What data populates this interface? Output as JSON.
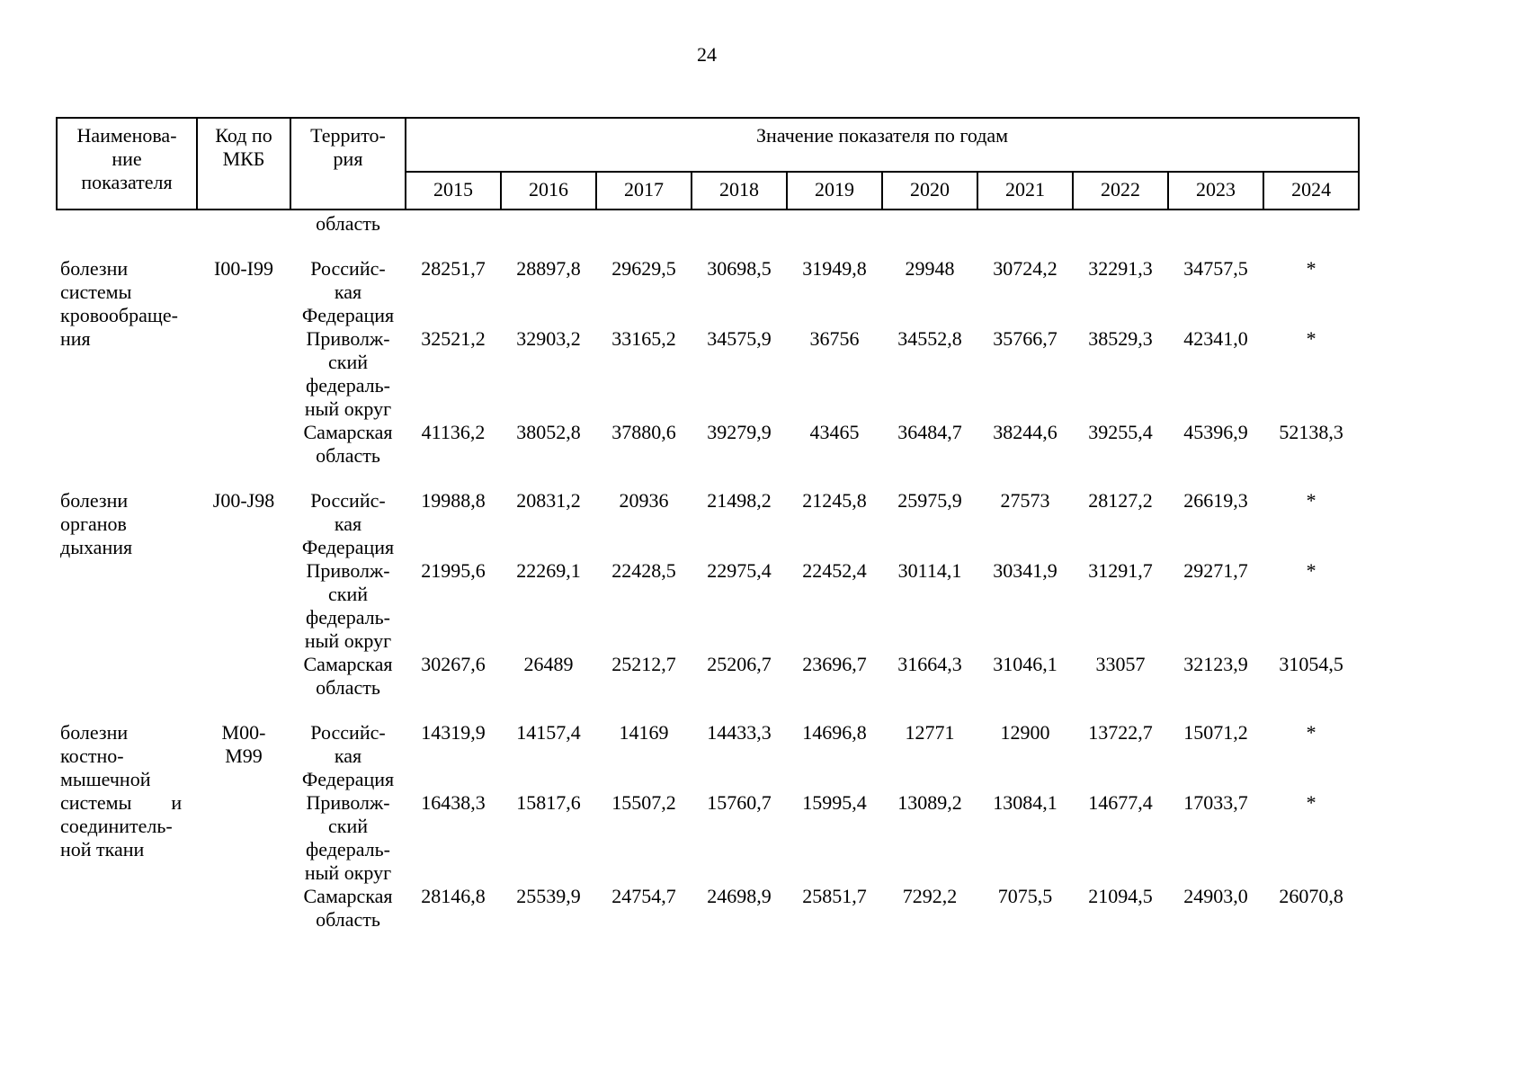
{
  "page": {
    "number": "24"
  },
  "table": {
    "header": {
      "col_name": "Наименова-\nние\nпоказателя",
      "col_code": "Код по\nМКБ",
      "col_territory": "Террито-\nрия",
      "years_group_label": "Значение показателя по годам",
      "years": [
        "2015",
        "2016",
        "2017",
        "2018",
        "2019",
        "2020",
        "2021",
        "2022",
        "2023",
        "2024"
      ]
    },
    "carryover": {
      "territory": "область"
    },
    "blocks": [
      {
        "name": "болезни\nсистемы\nкровообраще-\nния",
        "code": "I00-I99",
        "rows": [
          {
            "territory": "Российс-\nкая\nФедерация",
            "values": [
              "28251,7",
              "28897,8",
              "29629,5",
              "30698,5",
              "31949,8",
              "29948",
              "30724,2",
              "32291,3",
              "34757,5",
              "*"
            ]
          },
          {
            "territory": "Приволж-\nский\nфедераль-\nный округ",
            "values": [
              "32521,2",
              "32903,2",
              "33165,2",
              "34575,9",
              "36756",
              "34552,8",
              "35766,7",
              "38529,3",
              "42341,0",
              "*"
            ]
          },
          {
            "territory": "Самарская\nобласть",
            "values": [
              "41136,2",
              "38052,8",
              "37880,6",
              "39279,9",
              "43465",
              "36484,7",
              "38244,6",
              "39255,4",
              "45396,9",
              "52138,3"
            ]
          }
        ]
      },
      {
        "name": "болезни\nорганов\nдыхания",
        "code": "J00-J98",
        "rows": [
          {
            "territory": "Российс-\nкая\nФедерация",
            "values": [
              "19988,8",
              "20831,2",
              "20936",
              "21498,2",
              "21245,8",
              "25975,9",
              "27573",
              "28127,2",
              "26619,3",
              "*"
            ]
          },
          {
            "territory": "Приволж-\nский\nфедераль-\nный округ",
            "values": [
              "21995,6",
              "22269,1",
              "22428,5",
              "22975,4",
              "22452,4",
              "30114,1",
              "30341,9",
              "31291,7",
              "29271,7",
              "*"
            ]
          },
          {
            "territory": "Самарская\nобласть",
            "values": [
              "30267,6",
              "26489",
              "25212,7",
              "25206,7",
              "23696,7",
              "31664,3",
              "31046,1",
              "33057",
              "32123,9",
              "31054,5"
            ]
          }
        ]
      },
      {
        "name": "болезни\nкостно-\nмышечной\nсистемы        и\nсоединитель-\nной ткани",
        "code": "M00-\nM99",
        "rows": [
          {
            "territory": "Российс-\nкая\nФедерация",
            "values": [
              "14319,9",
              "14157,4",
              "14169",
              "14433,3",
              "14696,8",
              "12771",
              "12900",
              "13722,7",
              "15071,2",
              "*"
            ]
          },
          {
            "territory": "Приволж-\nский\nфедераль-\nный округ",
            "values": [
              "16438,3",
              "15817,6",
              "15507,2",
              "15760,7",
              "15995,4",
              "13089,2",
              "13084,1",
              "14677,4",
              "17033,7",
              "*"
            ]
          },
          {
            "territory": "Самарская\nобласть",
            "values": [
              "28146,8",
              "25539,9",
              "24754,7",
              "24698,9",
              "25851,7",
              "7292,2",
              "7075,5",
              "21094,5",
              "24903,0",
              "26070,8"
            ]
          }
        ]
      }
    ]
  }
}
